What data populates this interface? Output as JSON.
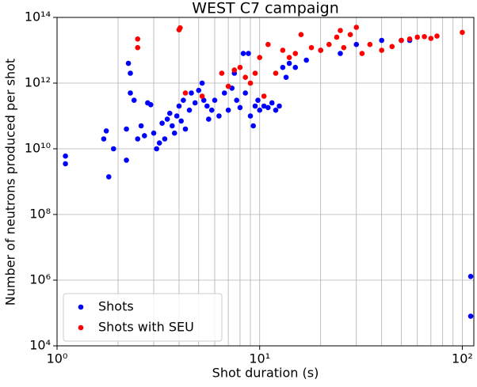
{
  "chart_data": {
    "type": "scatter",
    "title": "WEST C7 campaign",
    "xlabel": "Shot duration (s)",
    "ylabel": "Number of neutrons produced per shot",
    "xscale": "log",
    "yscale": "log",
    "grid": true,
    "legend": "lower left",
    "xlim": [
      1,
      114
    ],
    "ylim": [
      10000,
      100000000000000
    ],
    "xticks": [
      {
        "value": 1,
        "label": "10⁰"
      },
      {
        "value": 10,
        "label": "10¹"
      },
      {
        "value": 100,
        "label": "10²"
      }
    ],
    "xminorticks": [
      2,
      3,
      4,
      5,
      6,
      7,
      8,
      9,
      20,
      30,
      40,
      50,
      60,
      70,
      80,
      90
    ],
    "yticks": [
      {
        "value": 10000,
        "label": "10⁴"
      },
      {
        "value": 1000000,
        "label": "10⁶"
      },
      {
        "value": 100000000,
        "label": "10⁸"
      },
      {
        "value": 10000000000,
        "label": "10¹⁰"
      },
      {
        "value": 1000000000000,
        "label": "10¹²"
      },
      {
        "value": 100000000000000,
        "label": "10¹⁴"
      }
    ],
    "series": [
      {
        "name": "Shots",
        "color": "#0000ff",
        "x": [
          1.1,
          1.1,
          1.7,
          1.75,
          1.8,
          1.9,
          2.2,
          2.2,
          2.25,
          2.3,
          2.3,
          2.4,
          2.5,
          2.6,
          2.7,
          2.8,
          2.9,
          3,
          3.1,
          3.2,
          3.3,
          3.4,
          3.5,
          3.6,
          3.7,
          3.8,
          3.9,
          4,
          4.1,
          4.2,
          4.3,
          4.5,
          4.6,
          4.8,
          5,
          5.2,
          5.3,
          5.5,
          5.6,
          5.8,
          6,
          6.3,
          6.7,
          7,
          7.3,
          7.5,
          7.7,
          8,
          8.3,
          8.5,
          8.8,
          9,
          9.3,
          9.5,
          9.8,
          10,
          10.5,
          11,
          11.5,
          12,
          12.5,
          13,
          13.5,
          14,
          15,
          17,
          20,
          25,
          30,
          40,
          50,
          55,
          110,
          110
        ],
        "values": [
          6000000000.0,
          3500000000.0,
          20000000000.0,
          35000000000.0,
          1400000000.0,
          10000000000.0,
          4500000000.0,
          40000000000.0,
          4000000000000.0,
          2000000000000.0,
          500000000000.0,
          300000000000.0,
          20000000000.0,
          50000000000.0,
          25000000000.0,
          250000000000.0,
          220000000000.0,
          30000000000.0,
          10000000000.0,
          15000000000.0,
          60000000000.0,
          20000000000.0,
          80000000000.0,
          120000000000.0,
          50000000000.0,
          30000000000.0,
          100000000000.0,
          200000000000.0,
          70000000000.0,
          300000000000.0,
          40000000000.0,
          150000000000.0,
          500000000000.0,
          250000000000.0,
          600000000000.0,
          1000000000000.0,
          300000000000.0,
          200000000000.0,
          80000000000.0,
          150000000000.0,
          300000000000.0,
          100000000000.0,
          500000000000.0,
          150000000000.0,
          700000000000.0,
          2000000000000.0,
          300000000000.0,
          180000000000.0,
          8000000000000.0,
          500000000000.0,
          8000000000000.0,
          100000000000.0,
          50000000000.0,
          200000000000.0,
          300000000000.0,
          150000000000.0,
          200000000000.0,
          180000000000.0,
          250000000000.0,
          150000000000.0,
          200000000000.0,
          3000000000000.0,
          1500000000000.0,
          4000000000000.0,
          3000000000000.0,
          5000000000000.0,
          10000000000000.0,
          8000000000000.0,
          15000000000000.0,
          20000000000000.0,
          20000000000000.0,
          20000000000000.0,
          1300000.0,
          80000.0
        ]
      },
      {
        "name": "Shots with SEU",
        "color": "#ff0000",
        "x": [
          2.5,
          2.5,
          4,
          4.05,
          4.3,
          5.2,
          6.5,
          7,
          7.5,
          8,
          8.5,
          9,
          9.5,
          10,
          10.5,
          11,
          12,
          13,
          14,
          15,
          16,
          18,
          20,
          22,
          24,
          25,
          26,
          28,
          30,
          32,
          35,
          40,
          45,
          50,
          55,
          60,
          65,
          70,
          75,
          100
        ],
        "values": [
          22000000000000.0,
          12000000000000.0,
          42000000000000.0,
          48000000000000.0,
          500000000000.0,
          400000000000.0,
          2000000000000.0,
          800000000000.0,
          2500000000000.0,
          3000000000000.0,
          1500000000000.0,
          1000000000000.0,
          2000000000000.0,
          6000000000000.0,
          400000000000.0,
          15000000000000.0,
          2000000000000.0,
          10000000000000.0,
          6000000000000.0,
          8000000000000.0,
          30000000000000.0,
          12000000000000.0,
          10000000000000.0,
          15000000000000.0,
          25000000000000.0,
          40000000000000.0,
          12000000000000.0,
          30000000000000.0,
          50000000000000.0,
          8000000000000.0,
          15000000000000.0,
          10000000000000.0,
          13000000000000.0,
          20000000000000.0,
          22000000000000.0,
          25000000000000.0,
          26000000000000.0,
          23000000000000.0,
          27000000000000.0,
          35000000000000.0
        ]
      }
    ]
  }
}
